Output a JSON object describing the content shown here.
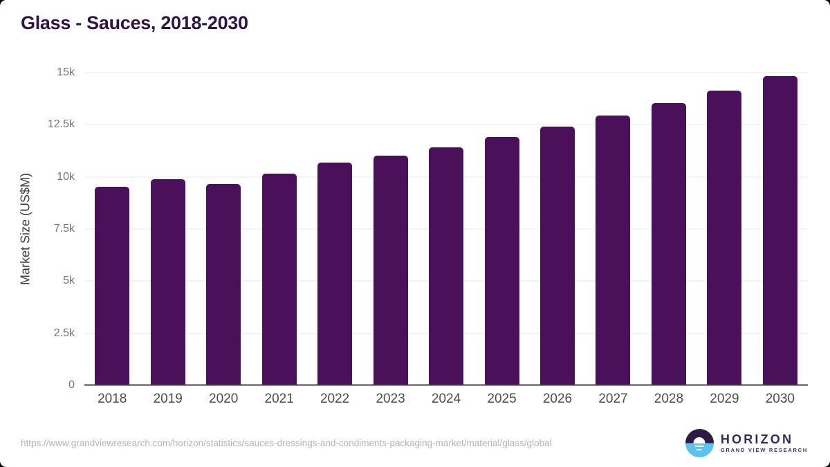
{
  "header": {
    "title": "Glass - Sauces, 2018-2030"
  },
  "chart_data": {
    "type": "bar",
    "title": "Glass - Sauces, 2018-2030",
    "categories": [
      "2018",
      "2019",
      "2020",
      "2021",
      "2022",
      "2023",
      "2024",
      "2025",
      "2026",
      "2027",
      "2028",
      "2029",
      "2030"
    ],
    "values": [
      9510,
      9900,
      9650,
      10160,
      10690,
      11030,
      11420,
      11920,
      12400,
      12940,
      13540,
      14150,
      14820
    ],
    "xlabel": "",
    "ylabel": "Market Size (US$M)",
    "ylim": [
      0,
      15000
    ],
    "yticks": [
      {
        "value": 0,
        "label": "0"
      },
      {
        "value": 2500,
        "label": "2.5k"
      },
      {
        "value": 5000,
        "label": "5k"
      },
      {
        "value": 7500,
        "label": "7.5k"
      },
      {
        "value": 10000,
        "label": "10k"
      },
      {
        "value": 12500,
        "label": "12.5k"
      },
      {
        "value": 15000,
        "label": "15k"
      }
    ],
    "grid": "horizontal-only",
    "legend": "none",
    "bar_color": "#4a1059"
  },
  "footer": {
    "source_url": "https://www.grandviewresearch.com/horizon/statistics/sauces-dressings-and-condiments-packaging-market/material/glass/global",
    "logo": {
      "brand": "HORIZON",
      "tagline": "GRAND VIEW RESEARCH",
      "icon": "horizon-sun-icon"
    }
  },
  "colors": {
    "bar": "#4a1059",
    "title_text": "#2d1445",
    "grid_line": "#e8e8e8",
    "axis_line": "#424242",
    "y_tick_label": "#757575",
    "x_tick_label": "#4c4c4c",
    "axis_title": "#3f3f3f",
    "url_text": "#b3b3b3",
    "logo_purple": "#2e1a47",
    "logo_blue": "#58c4ef",
    "logo_brand_text": "#302a55",
    "logo_tagline_text": "#46276a"
  }
}
